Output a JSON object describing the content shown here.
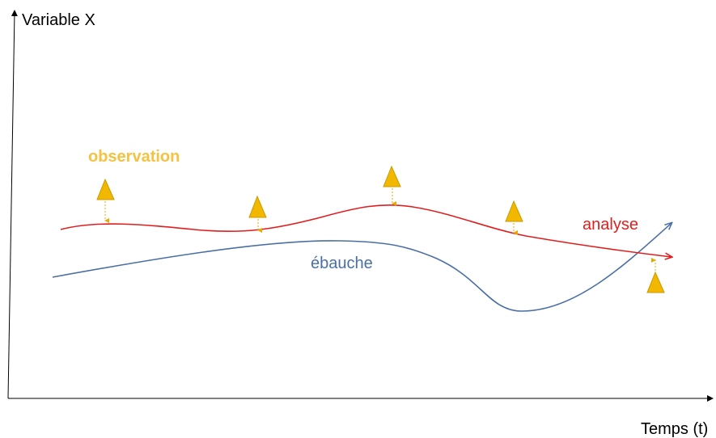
{
  "axes": {
    "y_label": "Variable X",
    "x_label": "Temps (t)"
  },
  "labels": {
    "observation": "observation",
    "analyse": "analyse",
    "ebauche": "ébauche"
  },
  "colors": {
    "axis": "#000000",
    "observation": "#f5c242",
    "observation_triangle": "#f2b800",
    "observation_triangle_stroke": "#c99a00",
    "analyse": "#e01e1e",
    "ebauche": "#4a6fa5"
  },
  "icons": {
    "observation_marker": "warning-triangle-icon"
  }
}
